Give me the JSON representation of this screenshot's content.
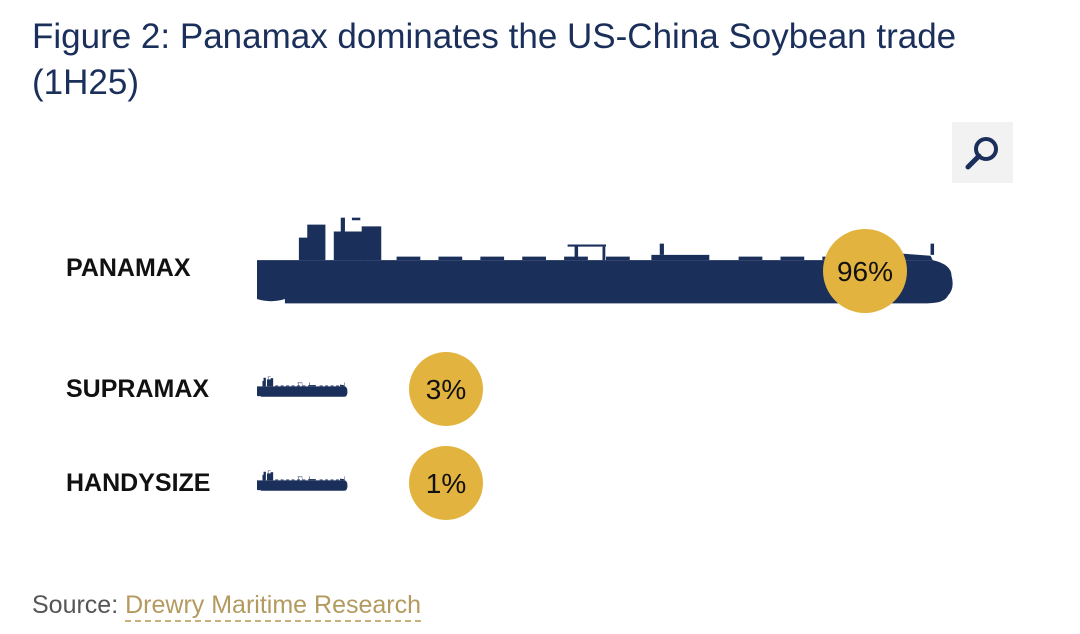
{
  "title": "Figure 2: Panamax dominates the US-China Soybean trade (1H25)",
  "zoom_icon": "magnifier-icon",
  "colors": {
    "ship": "#1b2f5b",
    "badge": "#e2b33e",
    "title": "#1b2f5b",
    "source_link": "#b39a5e"
  },
  "chart_data": {
    "type": "bar",
    "title": "Figure 2: Panamax dominates the US-China Soybean trade (1H25)",
    "categories": [
      "PANAMAX",
      "SUPRAMAX",
      "HANDYSIZE"
    ],
    "values": [
      96,
      3,
      1
    ],
    "value_labels": [
      "96%",
      "3%",
      "1%"
    ],
    "unit": "%",
    "mark": "ship silhouette scaled by share",
    "grid": false,
    "legend": "none"
  },
  "source": {
    "label": "Source:",
    "link_text": "Drewry Maritime Research"
  }
}
